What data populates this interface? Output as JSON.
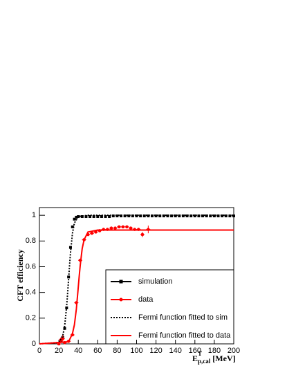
{
  "chart_data": {
    "type": "line",
    "ylabel": "CFT efficiency",
    "xlabel": "E",
    "xlabel_sup": "T",
    "xlabel_sub": "p,cal",
    "xlabel_unit": "[MeV]",
    "xlim": [
      0,
      200
    ],
    "ylim": [
      0,
      1.06
    ],
    "xticks": [
      0,
      20,
      40,
      60,
      80,
      100,
      120,
      140,
      160,
      180,
      200
    ],
    "yticks": [
      0,
      0.2,
      0.4,
      0.6,
      0.8,
      1
    ],
    "legend": "bottom-right",
    "series": [
      {
        "name": "simulation",
        "color": "#000000",
        "kind": "points",
        "x": [
          20,
          22,
          24,
          26,
          28,
          30,
          32,
          34,
          36,
          38,
          40,
          44,
          48,
          52,
          56,
          60,
          64,
          68,
          72,
          76,
          80,
          84,
          88,
          92,
          96,
          100,
          104,
          108,
          112,
          116,
          120,
          124,
          128,
          132,
          136,
          140,
          144,
          148,
          152,
          156,
          160,
          164,
          168,
          172,
          176,
          180,
          184,
          188,
          192,
          196,
          200
        ],
        "values": [
          0.0,
          0.02,
          0.05,
          0.12,
          0.28,
          0.52,
          0.75,
          0.91,
          0.97,
          0.985,
          0.99,
          0.99,
          0.99,
          0.99,
          0.99,
          0.99,
          0.99,
          0.99,
          0.99,
          0.995,
          0.995,
          0.995,
          0.995,
          0.995,
          0.995,
          0.995,
          0.995,
          0.995,
          0.995,
          0.995,
          0.995,
          0.995,
          0.995,
          0.995,
          0.995,
          0.995,
          0.995,
          0.995,
          0.995,
          0.995,
          0.995,
          0.995,
          0.995,
          0.995,
          0.995,
          0.995,
          0.995,
          0.995,
          0.995,
          0.995,
          0.995
        ]
      },
      {
        "name": "data",
        "color": "#ff0000",
        "kind": "points",
        "x": [
          20,
          22,
          24,
          26,
          30,
          34,
          38,
          42,
          46,
          50,
          54,
          58,
          62,
          66,
          70,
          74,
          78,
          82,
          86,
          90,
          94,
          98,
          102,
          106,
          112
        ],
        "values": [
          0.0,
          0.03,
          0.04,
          0.01,
          0.02,
          0.07,
          0.32,
          0.65,
          0.81,
          0.85,
          0.86,
          0.87,
          0.88,
          0.89,
          0.89,
          0.9,
          0.9,
          0.91,
          0.91,
          0.91,
          0.9,
          0.89,
          0.89,
          0.85,
          0.89
        ],
        "errors": [
          0.01,
          0.02,
          0.03,
          0.01,
          0.01,
          0.01,
          0.01,
          0.01,
          0.01,
          0.01,
          0.01,
          0.01,
          0.01,
          0.01,
          0.01,
          0.01,
          0.01,
          0.01,
          0.01,
          0.01,
          0.01,
          0.01,
          0.01,
          0.02,
          0.03
        ]
      },
      {
        "name": "Fermi function fitted to sim",
        "color": "#000000",
        "kind": "dotted",
        "x": [
          0,
          20,
          24,
          26,
          28,
          29,
          30,
          31,
          32,
          34,
          36,
          40,
          50,
          200
        ],
        "values": [
          0.0,
          0.011,
          0.061,
          0.14,
          0.29,
          0.39,
          0.5,
          0.61,
          0.71,
          0.86,
          0.94,
          0.99,
          1.0,
          1.0
        ]
      },
      {
        "name": "Fermi function fitted to data",
        "color": "#ff0000",
        "kind": "solid",
        "x": [
          0,
          30,
          34,
          36,
          38,
          39,
          40,
          41,
          42,
          44,
          46,
          50,
          60,
          200
        ],
        "values": [
          0.0,
          0.016,
          0.08,
          0.148,
          0.27,
          0.355,
          0.4425,
          0.53,
          0.61,
          0.74,
          0.81,
          0.87,
          0.885,
          0.885
        ]
      }
    ]
  }
}
